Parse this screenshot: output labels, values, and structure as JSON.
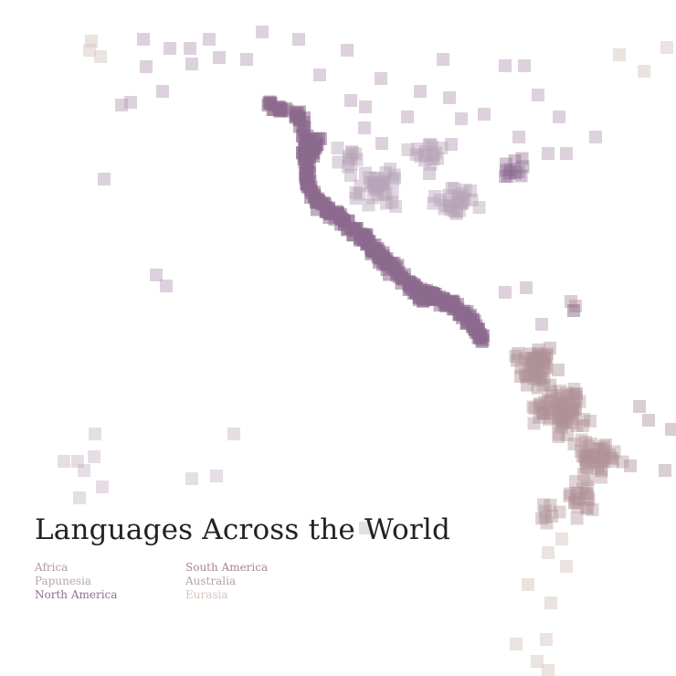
{
  "title": "Languages Across the World",
  "legend": [
    {
      "key": "africa",
      "label": "Africa",
      "color": "#b39a9e"
    },
    {
      "key": "papunesia",
      "label": "Papunesia",
      "color": "#b6a6b1"
    },
    {
      "key": "north_america",
      "label": "North America",
      "color": "#8f6f91"
    },
    {
      "key": "south_america",
      "label": "South America",
      "color": "#a9888d"
    },
    {
      "key": "australia",
      "label": "Australia",
      "color": "#b3a1b3"
    },
    {
      "key": "eurasia",
      "label": "Eurasia",
      "color": "#d3c5bd"
    }
  ]
}
